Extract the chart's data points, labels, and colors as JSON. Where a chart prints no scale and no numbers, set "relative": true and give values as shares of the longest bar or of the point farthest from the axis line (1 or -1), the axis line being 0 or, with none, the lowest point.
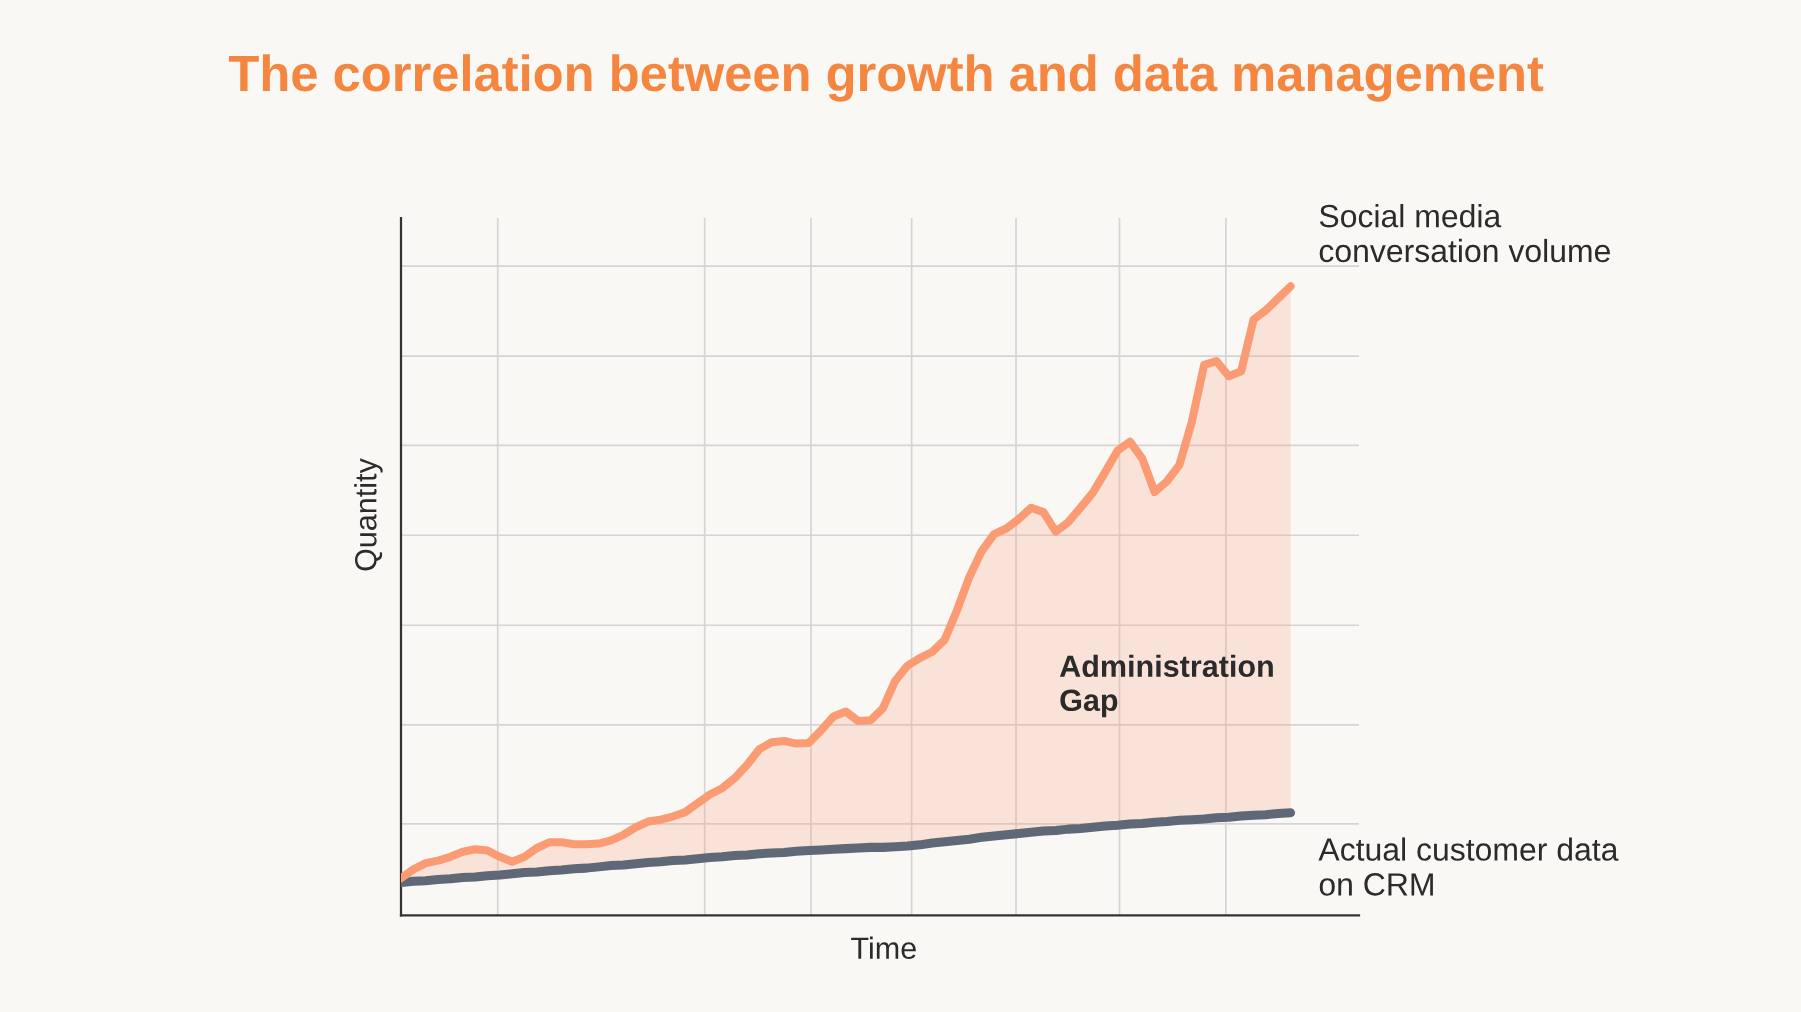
{
  "chart_data": {
    "type": "line",
    "title": "The correlation between growth and data management",
    "xlabel": "Time",
    "ylabel": "Quantity",
    "relative": true,
    "grid": true,
    "annotations": [
      "Administration\nGap"
    ],
    "categories": [
      null,
      null,
      null,
      null,
      null,
      null,
      null,
      null,
      null,
      null,
      null,
      null,
      null,
      null,
      null,
      null,
      null,
      null,
      null,
      null,
      null,
      null,
      null,
      null,
      null,
      null,
      null,
      null,
      null,
      null,
      null,
      null,
      null,
      null,
      null,
      null,
      null,
      null,
      null,
      null,
      null,
      null,
      null,
      null,
      null,
      null,
      null,
      null,
      null,
      null,
      null,
      null,
      null,
      null,
      null,
      null,
      null,
      null,
      null,
      null,
      null,
      null,
      null,
      null,
      null,
      null,
      null,
      null,
      null,
      null,
      null,
      null,
      null
    ],
    "series": [
      {
        "name": "Social media\nconversation volume",
        "color": "#fa9b74",
        "values": [
          0.059,
          0.073,
          0.083,
          0.087,
          0.093,
          0.101,
          0.105,
          0.103,
          0.093,
          0.085,
          0.093,
          0.107,
          0.116,
          0.116,
          0.113,
          0.113,
          0.114,
          0.119,
          0.128,
          0.14,
          0.149,
          0.152,
          0.157,
          0.164,
          0.178,
          0.192,
          0.202,
          0.218,
          0.239,
          0.264,
          0.275,
          0.277,
          0.273,
          0.274,
          0.294,
          0.316,
          0.324,
          0.309,
          0.31,
          0.329,
          0.373,
          0.397,
          0.409,
          0.419,
          0.438,
          0.485,
          0.538,
          0.579,
          0.606,
          0.615,
          0.63,
          0.648,
          0.641,
          0.61,
          0.625,
          0.648,
          0.672,
          0.705,
          0.739,
          0.753,
          0.726,
          0.673,
          0.69,
          0.716,
          0.784,
          0.875,
          0.881,
          0.857,
          0.865,
          0.947,
          0.962,
          0.981,
          1.0
        ],
        "lower": [
          0.052,
          0.054,
          0.055,
          0.057,
          0.058,
          0.06,
          0.061,
          0.063,
          0.064,
          0.066,
          0.068,
          0.069,
          0.071,
          0.072,
          0.074,
          0.075,
          0.077,
          0.079,
          0.08,
          0.082,
          0.084,
          0.085,
          0.087,
          0.088,
          0.09,
          0.092,
          0.093,
          0.095,
          0.096,
          0.098,
          0.099,
          0.1,
          0.102,
          0.103,
          0.104,
          0.105,
          0.106,
          0.107,
          0.108,
          0.108,
          0.109,
          0.11,
          0.112,
          0.115,
          0.117,
          0.119,
          0.121,
          0.124,
          0.126,
          0.128,
          0.13,
          0.132,
          0.134,
          0.135,
          0.137,
          0.138,
          0.14,
          0.142,
          0.143,
          0.145,
          0.146,
          0.148,
          0.149,
          0.151,
          0.152,
          0.153,
          0.155,
          0.156,
          0.158,
          0.159,
          0.16,
          0.162,
          0.163
        ],
        "upper": [
          0.059,
          0.073,
          0.083,
          0.087,
          0.093,
          0.101,
          0.105,
          0.103,
          0.093,
          0.085,
          0.093,
          0.107,
          0.116,
          0.116,
          0.113,
          0.113,
          0.114,
          0.119,
          0.128,
          0.14,
          0.149,
          0.152,
          0.157,
          0.164,
          0.178,
          0.192,
          0.202,
          0.218,
          0.239,
          0.264,
          0.275,
          0.277,
          0.273,
          0.274,
          0.294,
          0.316,
          0.324,
          0.309,
          0.31,
          0.329,
          0.373,
          0.397,
          0.409,
          0.419,
          0.438,
          0.485,
          0.538,
          0.579,
          0.606,
          0.615,
          0.63,
          0.648,
          0.641,
          0.61,
          0.625,
          0.648,
          0.672,
          0.705,
          0.739,
          0.753,
          0.726,
          0.673,
          0.69,
          0.716,
          0.784,
          0.875,
          0.881,
          0.857,
          0.865,
          0.947,
          0.962,
          0.981,
          1.0
        ]
      },
      {
        "name": "Actual customer data\non CRM",
        "color": "#5e6877",
        "values": [
          0.052,
          0.054,
          0.055,
          0.057,
          0.058,
          0.06,
          0.061,
          0.063,
          0.064,
          0.066,
          0.068,
          0.069,
          0.071,
          0.072,
          0.074,
          0.075,
          0.077,
          0.079,
          0.08,
          0.082,
          0.084,
          0.085,
          0.087,
          0.088,
          0.09,
          0.092,
          0.093,
          0.095,
          0.096,
          0.098,
          0.099,
          0.1,
          0.102,
          0.103,
          0.104,
          0.105,
          0.106,
          0.107,
          0.108,
          0.108,
          0.109,
          0.11,
          0.112,
          0.115,
          0.117,
          0.119,
          0.121,
          0.124,
          0.126,
          0.128,
          0.13,
          0.132,
          0.134,
          0.135,
          0.137,
          0.138,
          0.14,
          0.142,
          0.143,
          0.145,
          0.146,
          0.148,
          0.149,
          0.151,
          0.152,
          0.153,
          0.155,
          0.156,
          0.158,
          0.159,
          0.16,
          0.162,
          0.163
        ]
      }
    ]
  }
}
